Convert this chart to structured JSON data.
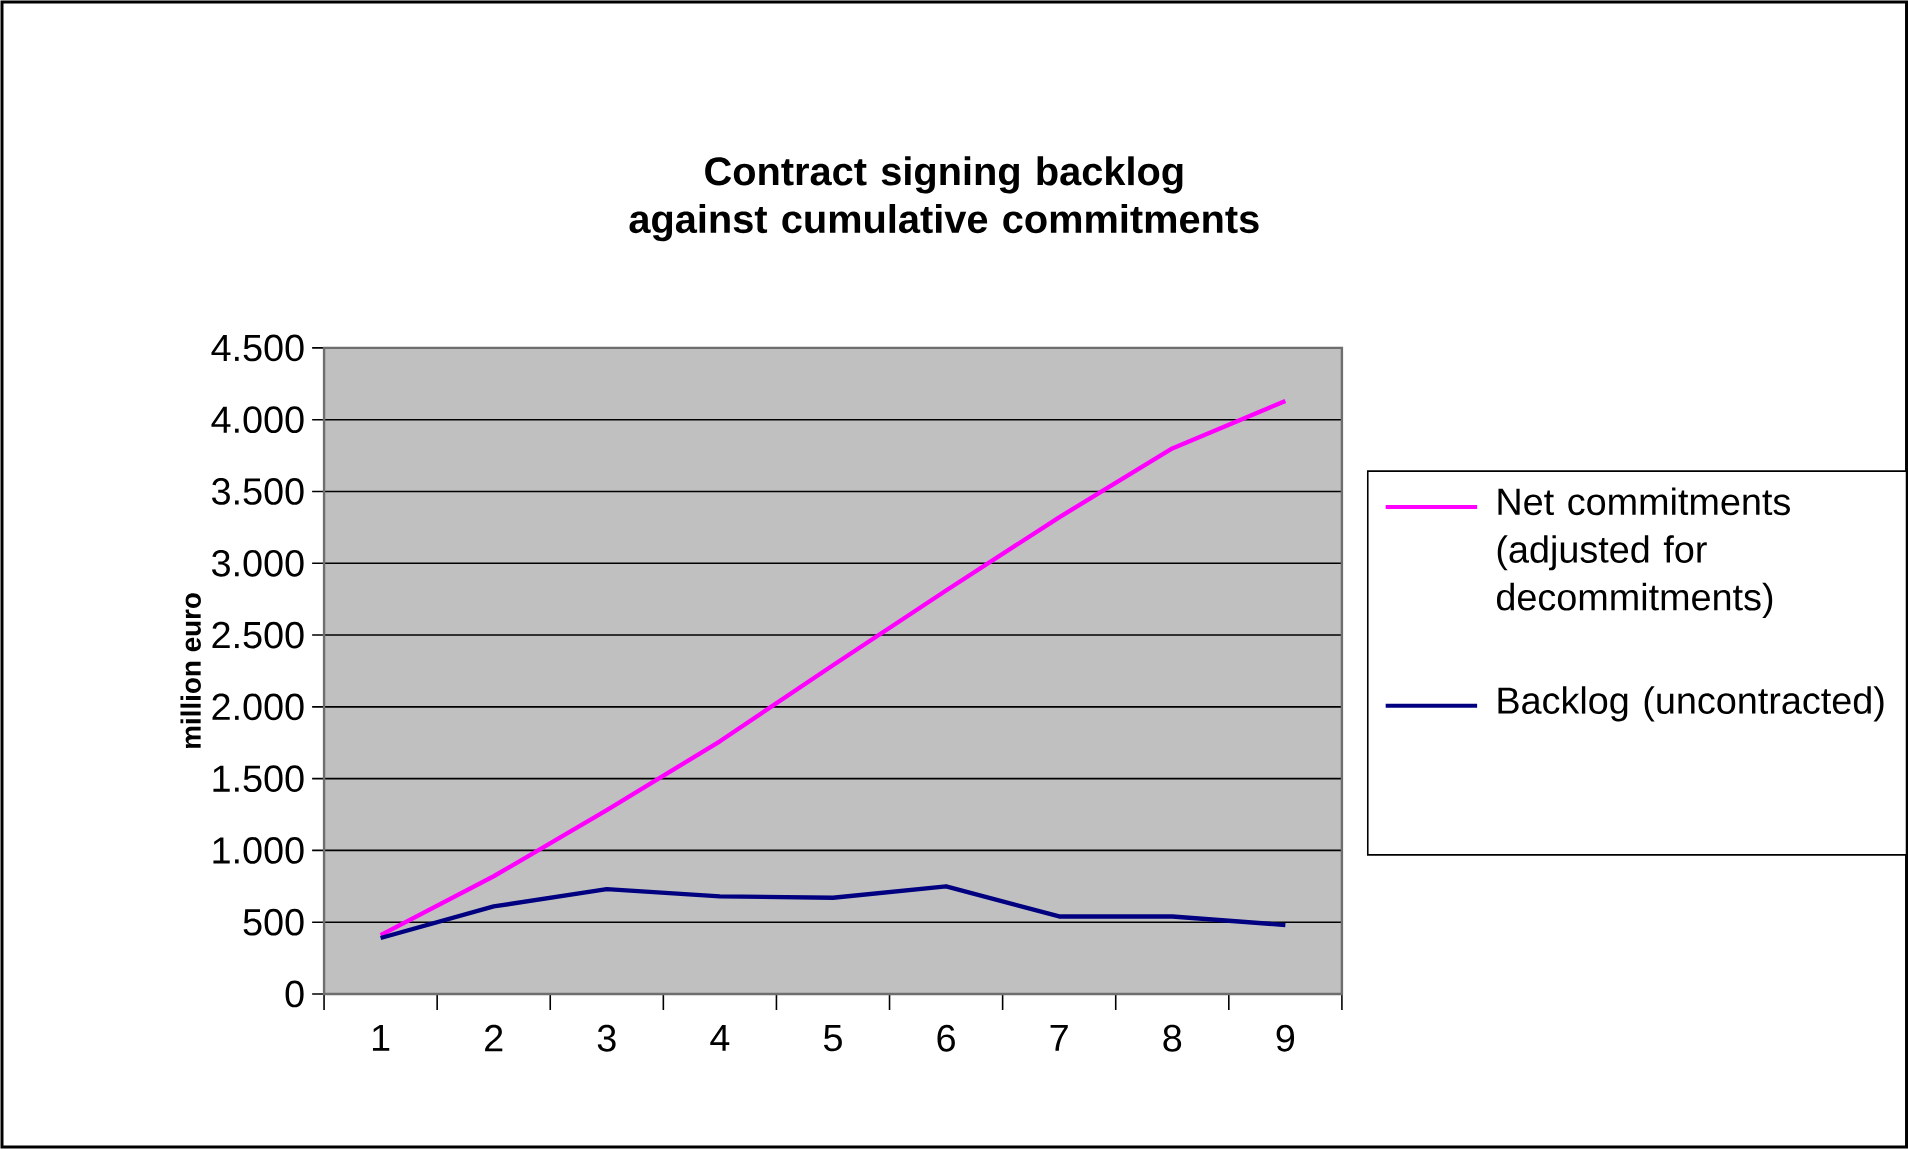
{
  "chart_data": {
    "type": "line",
    "title": "Contract signing backlog against cumulative commitments",
    "ylabel": "million euro",
    "categories": [
      "1",
      "2",
      "3",
      "4",
      "5",
      "6",
      "7",
      "8",
      "9"
    ],
    "series": [
      {
        "name": "Net commitments (adjusted for decommitments)",
        "color": "#ff00ff",
        "values": [
          410,
          820,
          1280,
          1760,
          2290,
          2810,
          3320,
          3800,
          4130
        ]
      },
      {
        "name": "Backlog (uncontracted)",
        "color": "#000080",
        "values": [
          390,
          610,
          730,
          680,
          670,
          750,
          540,
          540,
          480
        ]
      }
    ],
    "ylim": [
      0,
      4500
    ],
    "yticks": [
      0,
      500,
      {
        "value": 1000,
        "label": "1.000"
      },
      {
        "value": 1500,
        "label": "1.500"
      },
      {
        "value": 2000,
        "label": "2.000"
      },
      {
        "value": 2500,
        "label": "2.500"
      },
      {
        "value": 3000,
        "label": "3.000"
      },
      {
        "value": 3500,
        "label": "3.500"
      },
      {
        "value": 4000,
        "label": "4.000"
      },
      {
        "value": 4500,
        "label": "4.500"
      }
    ],
    "grid": "y",
    "legend": "right",
    "marker": "none",
    "line_style": "solid"
  }
}
